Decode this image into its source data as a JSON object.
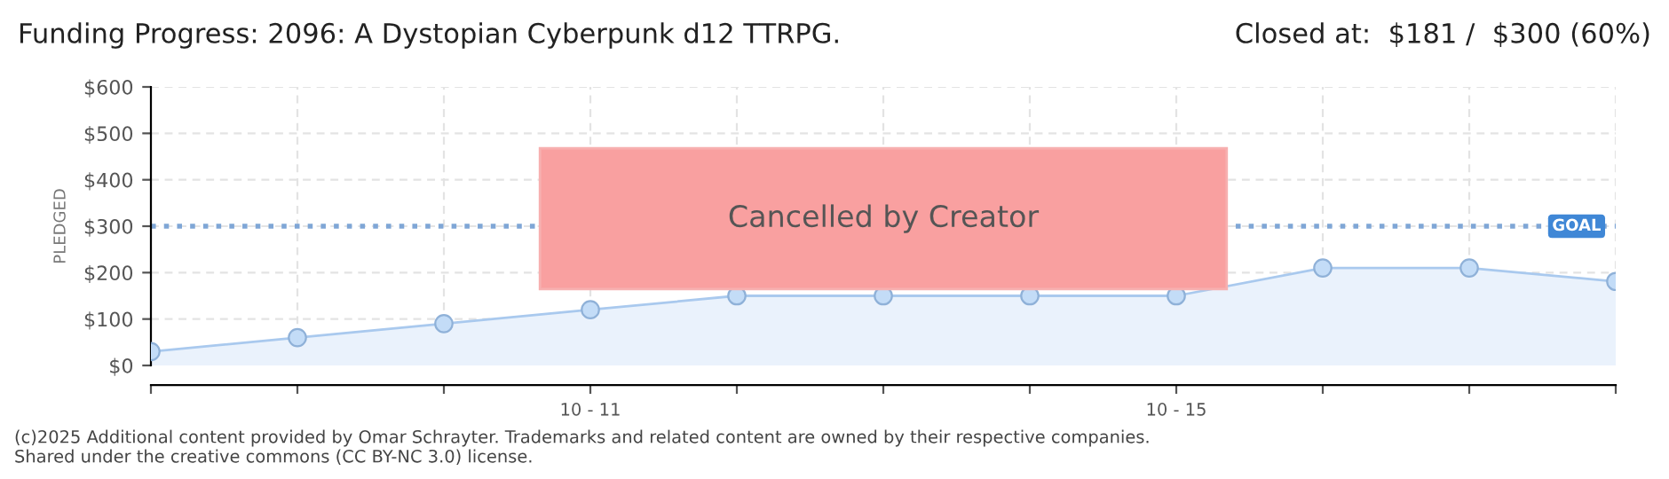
{
  "chart_data": {
    "type": "area",
    "title": "Funding Progress: 2096: A Dystopian Cyberpunk d12 TTRPG.",
    "subtitle": "Closed at:  $181 /  $300 (60%)",
    "ylabel": "PLEDGED",
    "categories": [
      null,
      null,
      null,
      "10 - 11",
      null,
      null,
      null,
      "10 - 15",
      null,
      null,
      null
    ],
    "series": [
      {
        "color": "#a9c9ee",
        "values": [
          30,
          60,
          90,
          120,
          150,
          150,
          150,
          150,
          210,
          210,
          181
        ]
      }
    ],
    "ylim": [
      0,
      600
    ],
    "yticks": [
      {
        "value": 0,
        "label": "$0"
      },
      {
        "value": 100,
        "label": "$100"
      },
      {
        "value": 200,
        "label": "$200"
      },
      {
        "value": 300,
        "label": "$300"
      },
      {
        "value": 400,
        "label": "$400"
      },
      {
        "value": 500,
        "label": "$500"
      },
      {
        "value": 600,
        "label": "$600"
      }
    ],
    "grid": true,
    "marker": "circle",
    "ref_lines": [
      {
        "axis": "y",
        "value": 300,
        "label": "GOAL",
        "color": "#7fa6d6",
        "line_style": "dotted"
      }
    ],
    "annotations": [
      "Cancelled by Creator",
      "(c)2025 Additional content provided by Omar Schrayter. Trademarks and related content are owned by their respective companies.",
      "Shared under the creative commons (CC BY-NC 3.0) license."
    ]
  }
}
